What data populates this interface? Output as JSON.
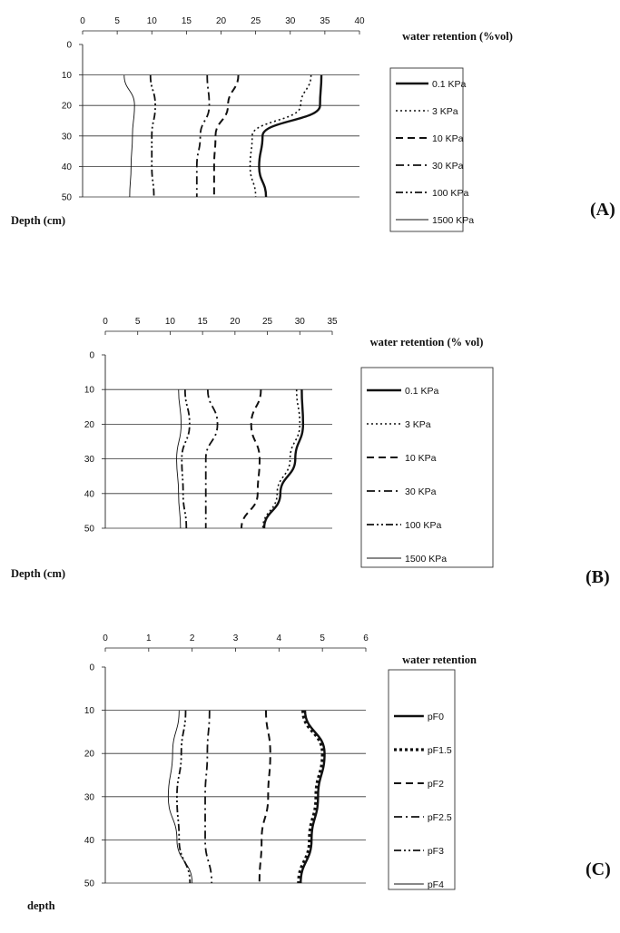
{
  "chart_data": [
    {
      "type": "line",
      "panel_label": "(A)",
      "xlabel": "water retention (%vol)",
      "ylabel": "Depth (cm)",
      "xlim": [
        0,
        40
      ],
      "ylim": [
        0,
        50
      ],
      "x_ticks": [
        "0",
        "5",
        "10",
        "15",
        "20",
        "25",
        "30",
        "35",
        "40"
      ],
      "y_ticks": [
        "0",
        "10",
        "20",
        "30",
        "40",
        "50"
      ],
      "grid": "horizontal",
      "legend_position": "right",
      "depths": [
        10,
        20,
        30,
        40,
        50
      ],
      "series": [
        {
          "name": "0.1 KPa",
          "style": "solid-thick",
          "values": [
            34.5,
            34.3,
            26.0,
            25.5,
            26.5
          ]
        },
        {
          "name": "3 KPa",
          "style": "dotted",
          "values": [
            33.0,
            31.5,
            24.5,
            24.2,
            25.0
          ]
        },
        {
          "name": "10 KPa",
          "style": "dashed",
          "values": [
            22.5,
            21.0,
            19.2,
            19.0,
            19.0
          ]
        },
        {
          "name": "30 KPa",
          "style": "dashdot",
          "values": [
            18.0,
            18.3,
            17.0,
            16.5,
            16.5
          ]
        },
        {
          "name": "100 KPa",
          "style": "dashdotdot",
          "values": [
            9.8,
            10.5,
            10.0,
            10.0,
            10.3
          ]
        },
        {
          "name": "1500 KPa",
          "style": "thin",
          "values": [
            6.0,
            7.5,
            7.2,
            7.0,
            6.8
          ]
        }
      ]
    },
    {
      "type": "line",
      "panel_label": "(B)",
      "xlabel": "water retention (% vol)",
      "ylabel": "Depth (cm)",
      "xlim": [
        0,
        35
      ],
      "ylim": [
        0,
        50
      ],
      "x_ticks": [
        "0",
        "5",
        "10",
        "15",
        "20",
        "25",
        "30",
        "35"
      ],
      "y_ticks": [
        "0",
        "10",
        "20",
        "30",
        "40",
        "50"
      ],
      "grid": "horizontal",
      "legend_position": "right",
      "depths": [
        10,
        20,
        30,
        40,
        50
      ],
      "series": [
        {
          "name": "0.1 KPa",
          "style": "solid-thick",
          "values": [
            30.3,
            30.5,
            29.3,
            27.0,
            24.5
          ]
        },
        {
          "name": "3 KPa",
          "style": "dotted",
          "values": [
            29.5,
            30.0,
            28.5,
            26.5,
            24.3
          ]
        },
        {
          "name": "10 KPa",
          "style": "dashed",
          "values": [
            24.0,
            22.5,
            23.8,
            23.5,
            21.0
          ]
        },
        {
          "name": "30 KPa",
          "style": "dashdot",
          "values": [
            15.8,
            17.3,
            15.5,
            15.5,
            15.5
          ]
        },
        {
          "name": "100 KPa",
          "style": "dashdotdot",
          "values": [
            12.3,
            13.0,
            11.8,
            12.0,
            12.5
          ]
        },
        {
          "name": "1500 KPa",
          "style": "thin",
          "values": [
            11.3,
            11.7,
            11.0,
            11.3,
            11.6
          ]
        }
      ]
    },
    {
      "type": "line",
      "panel_label": "(C)",
      "xlabel": "water retention",
      "ylabel": "depth",
      "xlim": [
        0,
        6
      ],
      "ylim": [
        0,
        50
      ],
      "x_ticks": [
        "0",
        "1",
        "2",
        "3",
        "4",
        "5",
        "6"
      ],
      "y_ticks": [
        "0",
        "10",
        "20",
        "30",
        "40",
        "50"
      ],
      "grid": "horizontal",
      "legend_position": "right",
      "depths": [
        10,
        20,
        30,
        40,
        50
      ],
      "series": [
        {
          "name": "pF0",
          "style": "solid-thick",
          "values": [
            4.6,
            5.05,
            4.9,
            4.75,
            4.5
          ]
        },
        {
          "name": "pF1.5",
          "style": "dotted-thick",
          "values": [
            4.55,
            5.0,
            4.85,
            4.7,
            4.45
          ]
        },
        {
          "name": "pF2",
          "style": "dashed",
          "values": [
            3.7,
            3.8,
            3.75,
            3.6,
            3.55
          ]
        },
        {
          "name": "pF2.5",
          "style": "dashdot",
          "values": [
            2.4,
            2.35,
            2.3,
            2.3,
            2.45
          ]
        },
        {
          "name": "pF3",
          "style": "dashdotdot",
          "values": [
            1.85,
            1.75,
            1.65,
            1.7,
            1.95
          ]
        },
        {
          "name": "pF4",
          "style": "thin",
          "values": [
            1.7,
            1.55,
            1.45,
            1.65,
            2.0
          ]
        }
      ]
    }
  ]
}
